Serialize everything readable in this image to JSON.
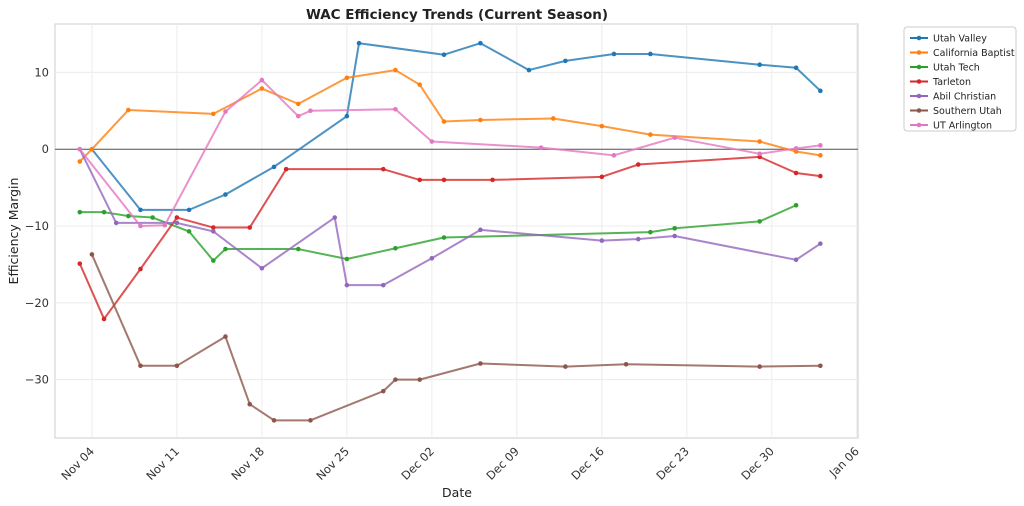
{
  "chart_data": {
    "type": "line",
    "title": "WAC Efficiency Trends (Current Season)",
    "xlabel": "Date",
    "ylabel": "Efficiency Margin",
    "x_ticks": [
      "Nov 04",
      "Nov 11",
      "Nov 18",
      "Nov 25",
      "Dec 02",
      "Dec 09",
      "Dec 16",
      "Dec 23",
      "Dec 30",
      "Jan 06"
    ],
    "y_ticks": [
      10,
      0,
      -10,
      -20,
      -30
    ],
    "ylim": [
      -37.6,
      16.3
    ],
    "xlim": [
      "Oct 31",
      "Jan 06"
    ],
    "grid": true,
    "reference_line": 0,
    "legend_position": "outside-top-right",
    "series": [
      {
        "name": "Utah Valley",
        "color": "#1f77b4",
        "points": [
          [
            "Nov 04",
            0
          ],
          [
            "Nov 08",
            -7.9
          ],
          [
            "Nov 12",
            -7.9
          ],
          [
            "Nov 15",
            -5.9
          ],
          [
            "Nov 19",
            -2.3
          ],
          [
            "Nov 25",
            4.3
          ],
          [
            "Nov 26",
            13.8
          ],
          [
            "Dec 03",
            12.3
          ],
          [
            "Dec 06",
            13.8
          ],
          [
            "Dec 10",
            10.3
          ],
          [
            "Dec 13",
            11.5
          ],
          [
            "Dec 17",
            12.4
          ],
          [
            "Dec 20",
            12.4
          ],
          [
            "Dec 29",
            11.0
          ],
          [
            "Jan 01",
            10.6
          ],
          [
            "Jan 03",
            7.6
          ]
        ]
      },
      {
        "name": "California Baptist",
        "color": "#ff7f0e",
        "points": [
          [
            "Nov 03",
            -1.6
          ],
          [
            "Nov 04",
            0
          ],
          [
            "Nov 07",
            5.1
          ],
          [
            "Nov 14",
            4.6
          ],
          [
            "Nov 18",
            7.9
          ],
          [
            "Nov 21",
            5.9
          ],
          [
            "Nov 25",
            9.3
          ],
          [
            "Nov 29",
            10.3
          ],
          [
            "Dec 01",
            8.4
          ],
          [
            "Dec 03",
            3.6
          ],
          [
            "Dec 06",
            3.8
          ],
          [
            "Dec 12",
            4.0
          ],
          [
            "Dec 16",
            3.0
          ],
          [
            "Dec 20",
            1.9
          ],
          [
            "Dec 29",
            1.0
          ],
          [
            "Jan 01",
            -0.3
          ],
          [
            "Jan 03",
            -0.8
          ]
        ]
      },
      {
        "name": "Utah Tech",
        "color": "#2ca02c",
        "points": [
          [
            "Nov 03",
            -8.2
          ],
          [
            "Nov 05",
            -8.2
          ],
          [
            "Nov 07",
            -8.7
          ],
          [
            "Nov 09",
            -8.9
          ],
          [
            "Nov 12",
            -10.7
          ],
          [
            "Nov 14",
            -14.5
          ],
          [
            "Nov 15",
            -13.0
          ],
          [
            "Nov 21",
            -13.0
          ],
          [
            "Nov 25",
            -14.3
          ],
          [
            "Nov 29",
            -12.9
          ],
          [
            "Dec 03",
            -11.5
          ],
          [
            "Dec 20",
            -10.8
          ],
          [
            "Dec 22",
            -10.3
          ],
          [
            "Dec 29",
            -9.4
          ],
          [
            "Jan 01",
            -7.3
          ]
        ]
      },
      {
        "name": "Tarleton",
        "color": "#d62728",
        "points": [
          [
            "Nov 03",
            -14.9
          ],
          [
            "Nov 05",
            -22.1
          ],
          [
            "Nov 08",
            -15.6
          ],
          [
            "Nov 11",
            -8.9
          ],
          [
            "Nov 14",
            -10.2
          ],
          [
            "Nov 17",
            -10.2
          ],
          [
            "Nov 20",
            -2.6
          ],
          [
            "Nov 28",
            -2.6
          ],
          [
            "Dec 01",
            -4.0
          ],
          [
            "Dec 03",
            -4.0
          ],
          [
            "Dec 07",
            -4.0
          ],
          [
            "Dec 16",
            -3.6
          ],
          [
            "Dec 19",
            -2.0
          ],
          [
            "Dec 29",
            -1.0
          ],
          [
            "Jan 01",
            -3.1
          ],
          [
            "Jan 03",
            -3.5
          ]
        ]
      },
      {
        "name": "Abil Christian",
        "color": "#9467bd",
        "points": [
          [
            "Nov 03",
            0
          ],
          [
            "Nov 06",
            -9.6
          ],
          [
            "Nov 11",
            -9.6
          ],
          [
            "Nov 14",
            -10.7
          ],
          [
            "Nov 18",
            -15.5
          ],
          [
            "Nov 24",
            -8.9
          ],
          [
            "Nov 25",
            -17.7
          ],
          [
            "Nov 28",
            -17.7
          ],
          [
            "Dec 02",
            -14.2
          ],
          [
            "Dec 06",
            -10.5
          ],
          [
            "Dec 16",
            -11.9
          ],
          [
            "Dec 19",
            -11.7
          ],
          [
            "Dec 22",
            -11.3
          ],
          [
            "Jan 01",
            -14.4
          ],
          [
            "Jan 03",
            -12.3
          ]
        ]
      },
      {
        "name": "Southern Utah",
        "color": "#8c564b",
        "points": [
          [
            "Nov 04",
            -13.7
          ],
          [
            "Nov 08",
            -28.2
          ],
          [
            "Nov 11",
            -28.2
          ],
          [
            "Nov 15",
            -24.4
          ],
          [
            "Nov 17",
            -33.2
          ],
          [
            "Nov 19",
            -35.3
          ],
          [
            "Nov 22",
            -35.3
          ],
          [
            "Nov 28",
            -31.5
          ],
          [
            "Nov 29",
            -30.0
          ],
          [
            "Dec 01",
            -30.0
          ],
          [
            "Dec 06",
            -27.9
          ],
          [
            "Dec 13",
            -28.3
          ],
          [
            "Dec 18",
            -28.0
          ],
          [
            "Dec 29",
            -28.3
          ],
          [
            "Jan 03",
            -28.2
          ]
        ]
      },
      {
        "name": "UT Arlington",
        "color": "#e377c2",
        "points": [
          [
            "Nov 03",
            0
          ],
          [
            "Nov 08",
            -10.0
          ],
          [
            "Nov 10",
            -9.9
          ],
          [
            "Nov 15",
            4.9
          ],
          [
            "Nov 18",
            9.0
          ],
          [
            "Nov 21",
            4.3
          ],
          [
            "Nov 22",
            5.0
          ],
          [
            "Nov 29",
            5.2
          ],
          [
            "Dec 02",
            1.0
          ],
          [
            "Dec 11",
            0.2
          ],
          [
            "Dec 17",
            -0.8
          ],
          [
            "Dec 22",
            1.5
          ],
          [
            "Dec 29",
            -0.6
          ],
          [
            "Jan 01",
            0.1
          ],
          [
            "Jan 03",
            0.5
          ]
        ]
      }
    ]
  }
}
